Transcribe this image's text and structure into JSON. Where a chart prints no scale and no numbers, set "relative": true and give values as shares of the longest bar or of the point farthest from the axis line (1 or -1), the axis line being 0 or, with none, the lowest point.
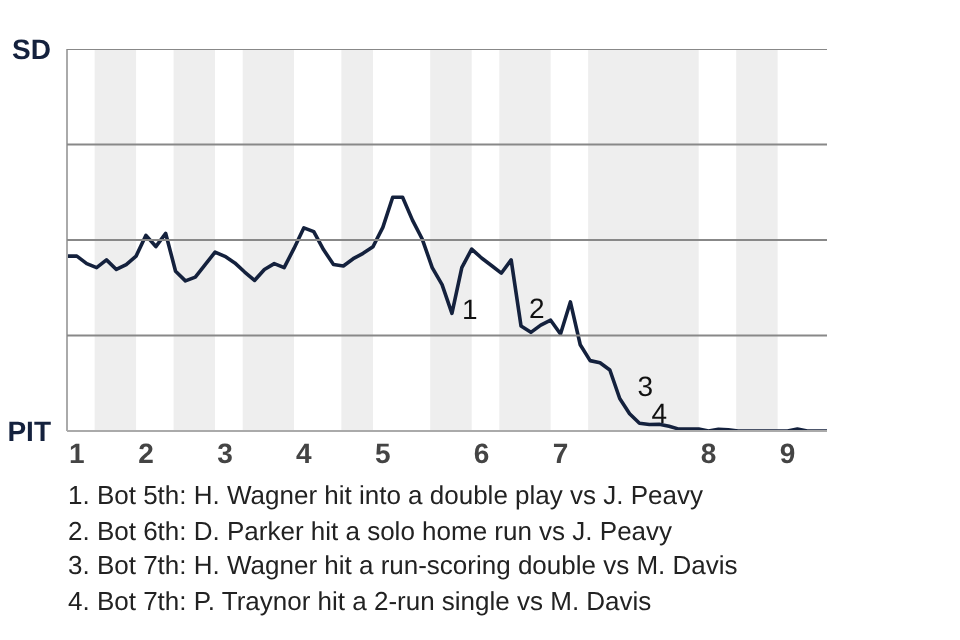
{
  "chart_data": {
    "type": "line",
    "relative": true,
    "categories": [
      null,
      "1",
      null,
      null,
      null,
      null,
      null,
      null,
      "2",
      null,
      null,
      null,
      null,
      null,
      null,
      null,
      "3",
      null,
      null,
      null,
      null,
      null,
      null,
      null,
      "4",
      null,
      null,
      null,
      null,
      null,
      null,
      null,
      "5",
      null,
      null,
      null,
      null,
      null,
      null,
      null,
      null,
      null,
      "6",
      null,
      null,
      null,
      null,
      null,
      null,
      null,
      "7",
      null,
      null,
      null,
      null,
      null,
      null,
      null,
      null,
      null,
      null,
      null,
      null,
      null,
      null,
      "8",
      null,
      null,
      null,
      null,
      null,
      null,
      null,
      "9",
      null,
      null,
      null,
      null
    ],
    "series": [
      {
        "color": "#14213d",
        "values": [
          0.748,
          0.748,
          0.716,
          0.699,
          0.732,
          0.691,
          0.712,
          0.748,
          0.837,
          0.789,
          0.845,
          0.683,
          0.642,
          0.658,
          0.712,
          0.765,
          0.747,
          0.719,
          0.68,
          0.644,
          0.691,
          0.716,
          0.699,
          0.781,
          0.869,
          0.853,
          0.775,
          0.712,
          0.706,
          0.737,
          0.76,
          0.788,
          0.871,
          1,
          1,
          0.902,
          0.82,
          0.699,
          0.626,
          0.503,
          0.699,
          0.778,
          0.74,
          0.708,
          0.675,
          0.732,
          0.449,
          0.422,
          0.453,
          0.474,
          0.415,
          0.552,
          0.369,
          0.301,
          0.292,
          0.261,
          0.139,
          0.074,
          0.033,
          0.028,
          0.029,
          0.02,
          0.008,
          0.008,
          0.008,
          0,
          0.007,
          0.005,
          0,
          0,
          0,
          0,
          0,
          0,
          0.008,
          0,
          0,
          0
        ]
      }
    ],
    "grid": false,
    "line_style": "solid",
    "ref_lines": [
      {
        "axis": "y",
        "value": 0.408,
        "color": "#888888"
      },
      {
        "axis": "y",
        "value": 0.817,
        "color": "#888888"
      },
      {
        "axis": "y",
        "value": 1.225,
        "color": "#888888"
      },
      {
        "axis": "y",
        "value": 1.634,
        "color": "#888888"
      }
    ],
    "annotations": [
      "SD",
      "PIT",
      "1",
      "2",
      "3",
      "4",
      "1. Bot 5th: H. Wagner hit into a double play vs J. Peavy",
      "2. Bot 6th: D. Parker hit a solo home run vs J. Peavy",
      "3. Bot 7th: H. Wagner hit a run-scoring double vs M. Davis",
      "4. Bot 7th: P. Traynor hit a 2-run single vs M. Davis"
    ]
  }
}
